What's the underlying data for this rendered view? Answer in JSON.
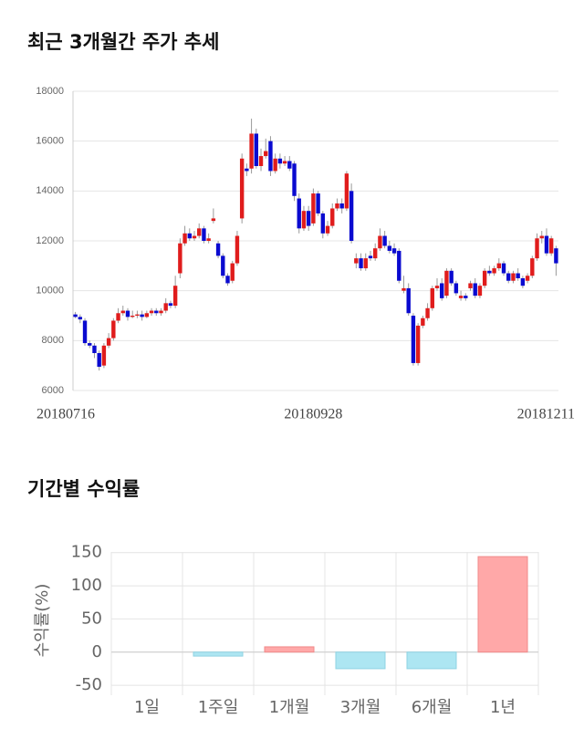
{
  "chart_data": [
    {
      "type": "candlestick",
      "title": "최근 3개월간 주가 추세",
      "categories": [
        "20180716",
        null,
        null,
        null,
        null,
        null,
        null,
        null,
        null,
        null,
        null,
        null,
        null,
        null,
        null,
        null,
        null,
        null,
        null,
        null,
        null,
        null,
        null,
        null,
        null,
        null,
        null,
        null,
        null,
        null,
        null,
        null,
        null,
        null,
        null,
        null,
        null,
        null,
        null,
        null,
        null,
        null,
        null,
        null,
        null,
        null,
        null,
        null,
        null,
        null,
        "20180928",
        null,
        null,
        null,
        null,
        null,
        null,
        null,
        null,
        null,
        null,
        null,
        null,
        null,
        null,
        null,
        null,
        null,
        null,
        null,
        null,
        null,
        null,
        null,
        null,
        null,
        null,
        null,
        null,
        null,
        null,
        null,
        null,
        null,
        null,
        null,
        null,
        null,
        null,
        null,
        null,
        null,
        null,
        null,
        null,
        null,
        null,
        null,
        null,
        null,
        null,
        "20181211"
      ],
      "open": [
        9050,
        8950,
        8800,
        7900,
        7800,
        7500,
        7000,
        7800,
        8100,
        8800,
        9100,
        9200,
        8950,
        9000,
        9050,
        8950,
        9100,
        9200,
        9100,
        9200,
        9500,
        9400,
        10700,
        11900,
        12300,
        12100,
        12200,
        12500,
        12000,
        12800,
        11900,
        11400,
        10600,
        10400,
        11100,
        12900,
        14900,
        14900,
        16300,
        15000,
        15400,
        16000,
        14800,
        15300,
        15100,
        15200,
        15100,
        13700,
        12500,
        13200,
        12700,
        13900,
        13100,
        12300,
        12600,
        13300,
        13500,
        13300,
        14000,
        11100,
        11300,
        10900,
        11400,
        11300,
        11700,
        12200,
        11800,
        11700,
        11600,
        10000,
        10100,
        9000,
        7100,
        8600,
        8900,
        9300,
        10100,
        10300,
        9800,
        10800,
        10300,
        9700,
        9800,
        10100,
        10300,
        9800,
        10200,
        10800,
        10700,
        10900,
        11100,
        10700,
        10400,
        10700,
        10500,
        10400,
        10600,
        11300,
        12100,
        12200,
        11500,
        11700
      ],
      "high": [
        9150,
        9050,
        8900,
        8000,
        7900,
        7600,
        7900,
        8300,
        8900,
        9300,
        9400,
        9300,
        9200,
        9200,
        9200,
        9200,
        9300,
        9300,
        9300,
        9700,
        9600,
        10600,
        12100,
        12600,
        12500,
        12400,
        12700,
        12600,
        12300,
        13300,
        12000,
        11500,
        10700,
        11200,
        12400,
        15500,
        15100,
        16900,
        16500,
        15700,
        16100,
        16200,
        15500,
        15500,
        15400,
        15400,
        15200,
        13900,
        13400,
        13400,
        14100,
        14000,
        13200,
        12800,
        13500,
        13700,
        13700,
        14800,
        14300,
        11500,
        11500,
        11500,
        11600,
        11900,
        12500,
        12400,
        12000,
        11900,
        11700,
        10600,
        10300,
        9100,
        8700,
        9000,
        9500,
        10200,
        10500,
        10500,
        10900,
        10900,
        10400,
        10000,
        9900,
        10400,
        10500,
        10300,
        10900,
        11000,
        11000,
        11300,
        11200,
        10800,
        10800,
        10900,
        10600,
        10700,
        11400,
        12300,
        12400,
        12500,
        12200,
        11800
      ],
      "low": [
        8900,
        8700,
        7800,
        7700,
        7300,
        6800,
        6900,
        7700,
        8000,
        8700,
        9000,
        8800,
        8900,
        8900,
        8800,
        8900,
        9000,
        9000,
        9000,
        9100,
        9300,
        9300,
        10500,
        11800,
        12000,
        12000,
        12100,
        11900,
        11900,
        12700,
        11300,
        10500,
        10200,
        10300,
        11000,
        12700,
        14600,
        14700,
        14900,
        14800,
        15300,
        14600,
        14700,
        14900,
        15000,
        14800,
        13600,
        12300,
        12400,
        12400,
        12600,
        13000,
        12100,
        12200,
        12500,
        13200,
        13100,
        13200,
        11900,
        10900,
        10800,
        10800,
        11200,
        11200,
        11600,
        11700,
        11500,
        11400,
        10300,
        9900,
        9000,
        7000,
        7000,
        8500,
        8800,
        9200,
        10000,
        9600,
        9700,
        10200,
        9800,
        9600,
        9600,
        10000,
        9700,
        9700,
        10100,
        10600,
        10600,
        10800,
        10600,
        10300,
        10300,
        10400,
        10100,
        10300,
        10500,
        11200,
        11900,
        11400,
        11400,
        10600
      ],
      "close": [
        8950,
        8850,
        7900,
        7800,
        7500,
        6950,
        7800,
        8100,
        8800,
        9100,
        9200,
        8950,
        9000,
        9050,
        8950,
        9100,
        9200,
        9100,
        9200,
        9500,
        9400,
        10200,
        11900,
        12300,
        12100,
        12200,
        12500,
        12000,
        12100,
        12900,
        11400,
        10600,
        10300,
        11100,
        12200,
        15300,
        14800,
        16300,
        15000,
        15400,
        15600,
        14800,
        15300,
        15100,
        15200,
        14900,
        13800,
        12500,
        13200,
        12600,
        13900,
        13100,
        12300,
        12600,
        13300,
        13500,
        13300,
        14700,
        12000,
        11300,
        10900,
        11300,
        11300,
        11700,
        12200,
        11800,
        11600,
        11500,
        10400,
        10100,
        9100,
        7100,
        8600,
        8900,
        9300,
        10100,
        10200,
        9700,
        10800,
        10300,
        9900,
        9800,
        9700,
        10300,
        9800,
        10200,
        10800,
        10700,
        10900,
        11100,
        10700,
        10400,
        10700,
        10500,
        10200,
        10600,
        11300,
        12100,
        12200,
        11500,
        12100,
        11100
      ],
      "up_color": "#e01c1c",
      "down_color": "#0a0ad0",
      "ylim": [
        6000,
        18000
      ],
      "yticks": [
        6000,
        8000,
        10000,
        12000,
        14000,
        16000,
        18000
      ],
      "grid": true
    },
    {
      "type": "bar",
      "title": "기간별 수익률",
      "y_label": "수익률(%)",
      "categories": [
        "1일",
        "1주일",
        "1개월",
        "3개월",
        "6개월",
        "1년"
      ],
      "values": [
        0,
        -6,
        8,
        -25,
        -25,
        144
      ],
      "positive_color": "#ffa8a8",
      "negative_color": "#ade6f2",
      "ylim": [
        -65,
        151
      ],
      "yticks": [
        -50,
        0,
        50,
        100,
        150
      ],
      "grid": true
    }
  ]
}
